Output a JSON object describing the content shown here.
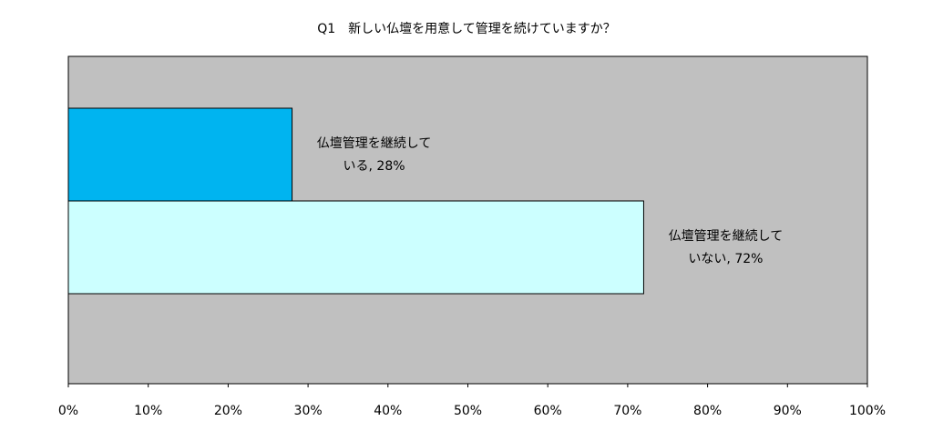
{
  "chart_data": {
    "type": "hbar",
    "title": "Q1　新しい仏壇を用意して管理を続けていますか？",
    "values": [
      28,
      72
    ],
    "value_labels": [
      "仏壇管理を継続している, 28%",
      "仏壇管理を継続していない, 72%"
    ],
    "colors": [
      "#00b4f0",
      "#ccffff"
    ],
    "xlim": [
      0,
      100
    ],
    "xticks": [
      {
        "value": 0,
        "label": "0%"
      },
      {
        "value": 10,
        "label": "10%"
      },
      {
        "value": 20,
        "label": "20%"
      },
      {
        "value": 30,
        "label": "30%"
      },
      {
        "value": 40,
        "label": "40%"
      },
      {
        "value": 50,
        "label": "50%"
      },
      {
        "value": 60,
        "label": "60%"
      },
      {
        "value": 70,
        "label": "70%"
      },
      {
        "value": 80,
        "label": "80%"
      },
      {
        "value": 90,
        "label": "90%"
      },
      {
        "value": 100,
        "label": "100%"
      }
    ],
    "grid": false
  }
}
